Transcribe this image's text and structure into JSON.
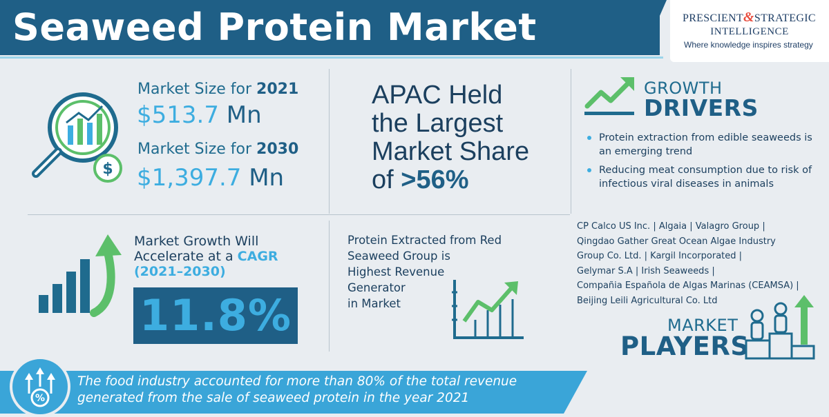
{
  "header": {
    "title": "Seaweed Protein Market",
    "brand": {
      "name_left": "PRESCIENT",
      "ampersand": "&",
      "name_right": "STRATEGIC",
      "name_line2": "INTELLIGENCE",
      "tagline": "Where knowledge inspires strategy"
    }
  },
  "market_size": {
    "label_2021_prefix": "Market Size for ",
    "year_2021": "2021",
    "value_2021": "$513.7",
    "unit_2021": "Mn",
    "label_2030_prefix": "Market Size for ",
    "year_2030": "2030",
    "value_2030": "$1,397.7",
    "unit_2030": "Mn"
  },
  "apac": {
    "line1": "APAC Held",
    "line2": "the Largest",
    "line3": "Market Share",
    "line4_prefix": "of ",
    "share": ">56%"
  },
  "growth_drivers": {
    "heading_small": "GROWTH",
    "heading_big": "DRIVERS",
    "items": [
      "Protein extraction from edible seaweeds is an emerging trend",
      "Reducing meat consumption due to risk of infectious viral diseases in animals"
    ]
  },
  "cagr": {
    "line1": "Market Growth Will",
    "line2_prefix": "Accelerate at a ",
    "line2_hl": "CAGR",
    "period": "(2021–2030)",
    "value": "11.8%"
  },
  "red_seaweed": {
    "lines": [
      "Protein Extracted from Red",
      "Seaweed Group is",
      "Highest Revenue",
      "Generator",
      "in Market"
    ]
  },
  "players": {
    "lines": [
      "CP Calco US Inc. | Algaia | Valagro Group |",
      "Qingdao Gather Great Ocean Algae Industry",
      "Group Co. Ltd. | Kargil Incorporated |",
      "Gelymar S.A | Irish Seaweeds |",
      "Compañia Española de Algas Marinas (CEAMSA) |",
      "Beijing Leili Agricultural Co. Ltd"
    ],
    "heading_small": "MARKET",
    "heading_big": "PLAYERS"
  },
  "footer": {
    "line1": "The food industry accounted for more than 80% of the total revenue",
    "line2": "generated from the sale of seaweed protein in the year 2021"
  },
  "colors": {
    "navy": "#1f5f86",
    "sky": "#3dade0",
    "green": "#5cbf6a",
    "background": "#e9edf1"
  },
  "icons": [
    "magnifier-chart-icon",
    "dollar-coin-icon",
    "growth-arrow-icon",
    "bar-growth-arrow-icon",
    "line-chart-arrow-icon",
    "people-podium-icon",
    "percent-growth-icon"
  ]
}
